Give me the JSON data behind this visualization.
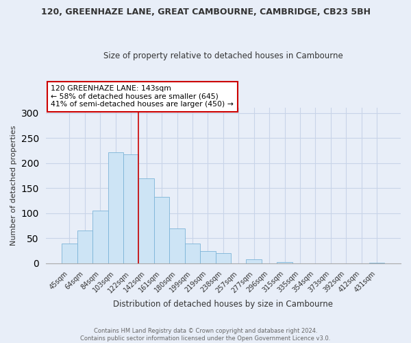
{
  "title1": "120, GREENHAZE LANE, GREAT CAMBOURNE, CAMBRIDGE, CB23 5BH",
  "title2": "Size of property relative to detached houses in Cambourne",
  "xlabel": "Distribution of detached houses by size in Cambourne",
  "ylabel": "Number of detached properties",
  "categories": [
    "45sqm",
    "64sqm",
    "84sqm",
    "103sqm",
    "122sqm",
    "142sqm",
    "161sqm",
    "180sqm",
    "199sqm",
    "219sqm",
    "238sqm",
    "257sqm",
    "277sqm",
    "296sqm",
    "315sqm",
    "335sqm",
    "354sqm",
    "373sqm",
    "392sqm",
    "412sqm",
    "431sqm"
  ],
  "values": [
    40,
    65,
    105,
    222,
    218,
    170,
    133,
    69,
    39,
    25,
    20,
    0,
    8,
    0,
    2,
    0,
    0,
    0,
    0,
    0,
    1
  ],
  "bar_color": "#cde4f5",
  "bar_edge_color": "#7cb4d8",
  "vline_color": "#cc0000",
  "ylim": [
    0,
    310
  ],
  "yticks": [
    0,
    50,
    100,
    150,
    200,
    250,
    300
  ],
  "annotation_title": "120 GREENHAZE LANE: 143sqm",
  "annotation_line1": "← 58% of detached houses are smaller (645)",
  "annotation_line2": "41% of semi-detached houses are larger (450) →",
  "annotation_box_color": "white",
  "annotation_box_edge": "#cc0000",
  "footer1": "Contains HM Land Registry data © Crown copyright and database right 2024.",
  "footer2": "Contains public sector information licensed under the Open Government Licence v3.0.",
  "bg_color": "#e8eef8",
  "grid_color": "#c8d4e8",
  "vline_index": 4.5
}
